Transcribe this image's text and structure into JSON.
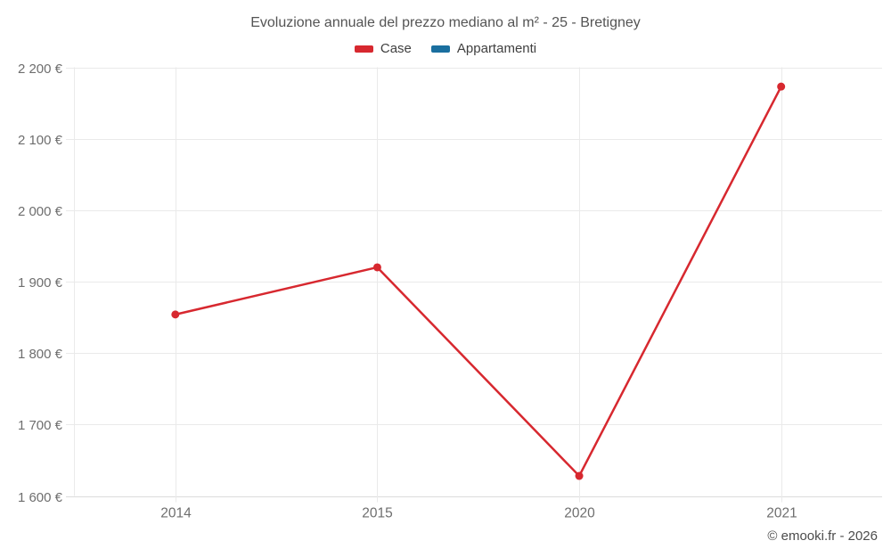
{
  "title": "Evoluzione annuale del prezzo mediano al m² - 25 - Bretigney",
  "footer": "© emooki.fr - 2026",
  "colors": {
    "case_red": "#d7282f",
    "appartamenti_blue": "#1a6f9f",
    "gridline": "#eaeaea",
    "axis_line": "#dcdcdc",
    "tick_label": "#6e6e6e",
    "title_text": "#545454"
  },
  "chart_data": {
    "type": "line",
    "title": "Evoluzione annuale del prezzo mediano al m² - 25 - Bretigney",
    "categories": [
      "2014",
      "2015",
      "2020",
      "2021"
    ],
    "series": [
      {
        "name": "Case",
        "color": "#d7282f",
        "values": [
          1854,
          1920,
          1628,
          2173
        ]
      },
      {
        "name": "Appartamenti",
        "color": "#1a6f9f",
        "values": [
          null,
          null,
          null,
          null
        ]
      }
    ],
    "xlabel": "",
    "ylabel": "",
    "ylim": [
      1600,
      2200
    ],
    "ytick_step": 100,
    "ytick_labels": [
      "1 600 €",
      "1 700 €",
      "1 800 €",
      "1 900 €",
      "2 000 €",
      "2 100 €",
      "2 200 €"
    ],
    "grid": true,
    "legend_position": "top",
    "marker": "circle"
  }
}
